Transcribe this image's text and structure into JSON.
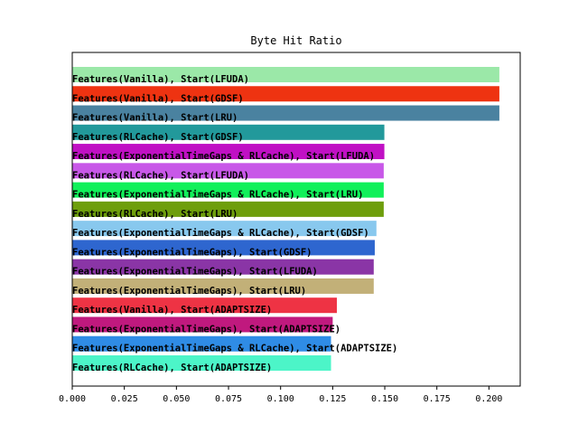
{
  "chart_data": {
    "type": "bar",
    "orientation": "horizontal",
    "title": "Byte Hit Ratio",
    "xlabel": "",
    "ylabel": "",
    "xlim": [
      0.0,
      0.215
    ],
    "xticks": [
      "0.000",
      "0.025",
      "0.050",
      "0.075",
      "0.100",
      "0.125",
      "0.150",
      "0.175",
      "0.200"
    ],
    "grid": false,
    "legend": "none",
    "bars": [
      {
        "label": "Features(Vanilla), Start(LFUDA)",
        "value": 0.205,
        "color": "#9be8a8"
      },
      {
        "label": "Features(Vanilla), Start(GDSF)",
        "value": 0.205,
        "color": "#ee3311"
      },
      {
        "label": "Features(Vanilla), Start(LRU)",
        "value": 0.205,
        "color": "#4a82a0"
      },
      {
        "label": "Features(RLCache), Start(GDSF)",
        "value": 0.1498,
        "color": "#22999b"
      },
      {
        "label": "Features(ExponentialTimeGaps & RLCache), Start(LFUDA)",
        "value": 0.1498,
        "color": "#c010c4"
      },
      {
        "label": "Features(RLCache), Start(LFUDA)",
        "value": 0.1495,
        "color": "#c858e8"
      },
      {
        "label": "Features(ExponentialTimeGaps & RLCache), Start(LRU)",
        "value": 0.1495,
        "color": "#11f05a"
      },
      {
        "label": "Features(RLCache), Start(LRU)",
        "value": 0.1495,
        "color": "#6e9e0c"
      },
      {
        "label": "Features(ExponentialTimeGaps & RLCache), Start(GDSF)",
        "value": 0.146,
        "color": "#88c8ee"
      },
      {
        "label": "Features(ExponentialTimeGaps), Start(GDSF)",
        "value": 0.1452,
        "color": "#2e66cf"
      },
      {
        "label": "Features(ExponentialTimeGaps), Start(LFUDA)",
        "value": 0.1447,
        "color": "#8a35a6"
      },
      {
        "label": "Features(ExponentialTimeGaps), Start(LRU)",
        "value": 0.1447,
        "color": "#c2b078"
      },
      {
        "label": "Features(Vanilla), Start(ADAPTSIZE)",
        "value": 0.127,
        "color": "#ee3344"
      },
      {
        "label": "Features(ExponentialTimeGaps), Start(ADAPTSIZE)",
        "value": 0.125,
        "color": "#c0197e"
      },
      {
        "label": "Features(ExponentialTimeGaps & RLCache), Start(ADAPTSIZE)",
        "value": 0.1242,
        "color": "#2f8ce6"
      },
      {
        "label": "Features(RLCache), Start(ADAPTSIZE)",
        "value": 0.1242,
        "color": "#4cf5c8"
      }
    ]
  }
}
